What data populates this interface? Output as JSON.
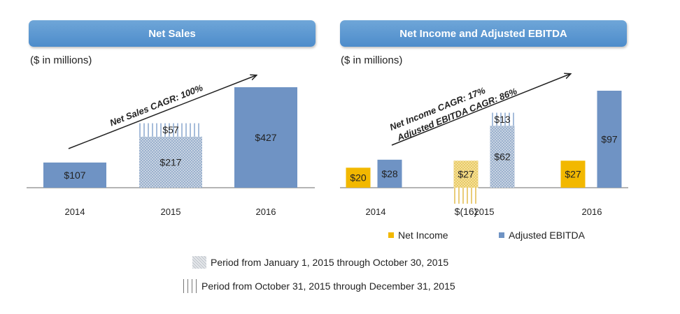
{
  "colors": {
    "header": "#5b9bd5",
    "ebitda_blue": "#6f93c4",
    "net_income_gold": "#f2b800",
    "axis": "#888888",
    "arrow": "#222222"
  },
  "left_panel": {
    "title": "Net Sales",
    "units": "($ in millions)"
  },
  "right_panel": {
    "title": "Net Income and Adjusted EBITDA",
    "units": "($ in millions)"
  },
  "legend": {
    "net_income": "Net Income",
    "ebitda": "Adjusted EBITDA",
    "predecessor": "Period from January 1, 2015 through October 30, 2015",
    "successor": "Period from October 31, 2015 through December 31, 2015"
  },
  "chart_data": [
    {
      "type": "bar",
      "title": "Net Sales",
      "categories": [
        "2014",
        "2015",
        "2016"
      ],
      "ylim": [
        0,
        427
      ],
      "bars": [
        {
          "category": "2014",
          "value": 107,
          "label": "$107",
          "style": "solid"
        },
        {
          "category": "2015",
          "value": 217,
          "label": "$217",
          "style": "crosshatch",
          "period": "predecessor"
        },
        {
          "category": "2015",
          "value": 57,
          "label": "$57",
          "style": "vertical-lines",
          "period": "successor",
          "stacked": true
        },
        {
          "category": "2016",
          "value": 427,
          "label": "$427",
          "style": "solid"
        }
      ],
      "annotation": "Net Sales CAGR:  100%"
    },
    {
      "type": "bar",
      "title": "Net Income and Adjusted EBITDA",
      "categories": [
        "2014",
        "2015",
        "2016"
      ],
      "ylim": [
        -16,
        97
      ],
      "series": [
        {
          "name": "Net Income",
          "values": [
            20,
            27,
            27
          ],
          "labels": [
            "$20",
            "$27",
            "$27"
          ]
        },
        {
          "name": "Adjusted EBITDA",
          "values": [
            28,
            62,
            97
          ],
          "labels": [
            "$28",
            "$62",
            "$97"
          ]
        }
      ],
      "extra_bars": [
        {
          "category": "2015",
          "series": "Net Income",
          "value": -16,
          "label": "$(16)",
          "style": "vertical-lines",
          "period": "successor"
        },
        {
          "category": "2015",
          "series": "Adjusted EBITDA",
          "value": 13,
          "label": "$13",
          "style": "vertical-lines",
          "period": "successor",
          "stacked": true
        }
      ],
      "annotations": [
        "Net Income CAGR:  17%",
        "Adjusted EBITDA CAGR:  86%"
      ]
    }
  ]
}
